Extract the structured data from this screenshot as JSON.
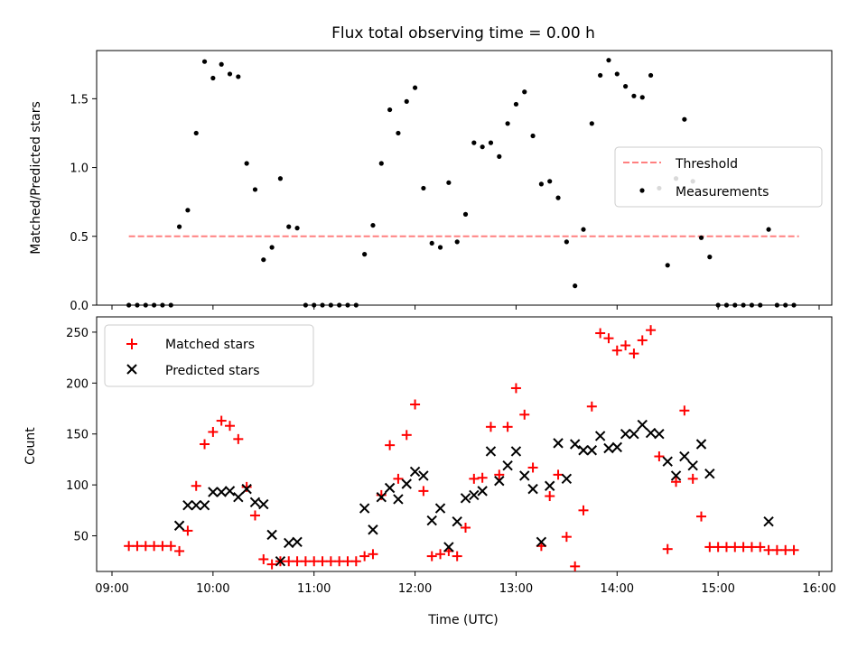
{
  "chart_data": [
    {
      "type": "scatter",
      "title": "Flux total observing time = 0.00 h",
      "ylabel": "Matched/Predicted stars",
      "xlabel": "",
      "xlim": [
        "09:00",
        "16:00"
      ],
      "ylim": [
        0,
        1.85
      ],
      "yticks": [
        0.0,
        0.5,
        1.0,
        1.5
      ],
      "ytick_labels": [
        "0.0",
        "0.5",
        "1.0",
        "1.5"
      ],
      "legend_position": "center-right",
      "threshold": {
        "name": "Threshold",
        "value": 0.5,
        "x_start": "09:10",
        "x_end": "15:48",
        "color": "#ff8080"
      },
      "series": [
        {
          "name": "Measurements",
          "color": "#000000",
          "points": [
            [
              "09:10",
              0
            ],
            [
              "09:15",
              0
            ],
            [
              "09:20",
              0
            ],
            [
              "09:25",
              0
            ],
            [
              "09:30",
              0
            ],
            [
              "09:35",
              0
            ],
            [
              "09:40",
              0.57
            ],
            [
              "09:45",
              0.69
            ],
            [
              "09:50",
              1.25
            ],
            [
              "09:55",
              1.77
            ],
            [
              "10:00",
              1.65
            ],
            [
              "10:05",
              1.75
            ],
            [
              "10:10",
              1.68
            ],
            [
              "10:15",
              1.66
            ],
            [
              "10:20",
              1.03
            ],
            [
              "10:25",
              0.84
            ],
            [
              "10:30",
              0.33
            ],
            [
              "10:35",
              0.42
            ],
            [
              "10:40",
              0.92
            ],
            [
              "10:45",
              0.57
            ],
            [
              "10:50",
              0.56
            ],
            [
              "10:55",
              0
            ],
            [
              "11:00",
              0
            ],
            [
              "11:05",
              0
            ],
            [
              "11:10",
              0
            ],
            [
              "11:15",
              0
            ],
            [
              "11:20",
              0
            ],
            [
              "11:25",
              0
            ],
            [
              "11:30",
              0.37
            ],
            [
              "11:35",
              0.58
            ],
            [
              "11:40",
              1.03
            ],
            [
              "11:45",
              1.42
            ],
            [
              "11:50",
              1.25
            ],
            [
              "11:55",
              1.48
            ],
            [
              "12:00",
              1.58
            ],
            [
              "12:05",
              0.85
            ],
            [
              "12:10",
              0.45
            ],
            [
              "12:15",
              0.42
            ],
            [
              "12:20",
              0.89
            ],
            [
              "12:25",
              0.46
            ],
            [
              "12:30",
              0.66
            ],
            [
              "12:35",
              1.18
            ],
            [
              "12:40",
              1.15
            ],
            [
              "12:45",
              1.18
            ],
            [
              "12:50",
              1.08
            ],
            [
              "12:55",
              1.32
            ],
            [
              "13:00",
              1.46
            ],
            [
              "13:05",
              1.55
            ],
            [
              "13:10",
              1.23
            ],
            [
              "13:15",
              0.88
            ],
            [
              "13:20",
              0.9
            ],
            [
              "13:25",
              0.78
            ],
            [
              "13:30",
              0.46
            ],
            [
              "13:35",
              0.14
            ],
            [
              "13:40",
              0.55
            ],
            [
              "13:45",
              1.32
            ],
            [
              "13:50",
              1.67
            ],
            [
              "13:55",
              1.78
            ],
            [
              "14:00",
              1.68
            ],
            [
              "14:05",
              1.59
            ],
            [
              "14:10",
              1.52
            ],
            [
              "14:15",
              1.51
            ],
            [
              "14:20",
              1.67
            ],
            [
              "14:25",
              0.85
            ],
            [
              "14:30",
              0.29
            ],
            [
              "14:35",
              0.92
            ],
            [
              "14:40",
              1.35
            ],
            [
              "14:45",
              0.9
            ],
            [
              "14:50",
              0.49
            ],
            [
              "14:55",
              0.35
            ],
            [
              "15:00",
              0
            ],
            [
              "15:05",
              0
            ],
            [
              "15:10",
              0
            ],
            [
              "15:15",
              0
            ],
            [
              "15:20",
              0
            ],
            [
              "15:25",
              0
            ],
            [
              "15:30",
              0.55
            ],
            [
              "15:35",
              0
            ],
            [
              "15:40",
              0
            ],
            [
              "15:45",
              0
            ]
          ]
        }
      ]
    },
    {
      "type": "scatter",
      "title": "",
      "xlabel": "Time (UTC)",
      "ylabel": "Count",
      "xlim": [
        "09:00",
        "16:00"
      ],
      "xticks": [
        "09:00",
        "10:00",
        "11:00",
        "12:00",
        "13:00",
        "14:00",
        "15:00",
        "16:00"
      ],
      "ylim": [
        15,
        265
      ],
      "yticks": [
        50,
        100,
        150,
        200,
        250
      ],
      "ytick_labels": [
        "50",
        "100",
        "150",
        "200",
        "250"
      ],
      "legend_position": "upper-left",
      "series": [
        {
          "name": "Matched stars",
          "marker": "plus",
          "color": "#ff0000",
          "points": [
            [
              "09:10",
              40
            ],
            [
              "09:15",
              40
            ],
            [
              "09:20",
              40
            ],
            [
              "09:25",
              40
            ],
            [
              "09:30",
              40
            ],
            [
              "09:35",
              40
            ],
            [
              "09:40",
              35
            ],
            [
              "09:45",
              55
            ],
            [
              "09:50",
              99
            ],
            [
              "09:55",
              140
            ],
            [
              "10:00",
              152
            ],
            [
              "10:05",
              163
            ],
            [
              "10:10",
              158
            ],
            [
              "10:15",
              145
            ],
            [
              "10:20",
              98
            ],
            [
              "10:25",
              70
            ],
            [
              "10:30",
              27
            ],
            [
              "10:35",
              22
            ],
            [
              "10:40",
              25
            ],
            [
              "10:45",
              25
            ],
            [
              "10:50",
              25
            ],
            [
              "10:55",
              25
            ],
            [
              "11:00",
              25
            ],
            [
              "11:05",
              25
            ],
            [
              "11:10",
              25
            ],
            [
              "11:15",
              25
            ],
            [
              "11:20",
              25
            ],
            [
              "11:25",
              25
            ],
            [
              "11:30",
              30
            ],
            [
              "11:35",
              32
            ],
            [
              "11:40",
              90
            ],
            [
              "11:45",
              139
            ],
            [
              "11:50",
              106
            ],
            [
              "11:55",
              149
            ],
            [
              "12:00",
              179
            ],
            [
              "12:05",
              94
            ],
            [
              "12:10",
              30
            ],
            [
              "12:15",
              32
            ],
            [
              "12:20",
              35
            ],
            [
              "12:25",
              30
            ],
            [
              "12:30",
              58
            ],
            [
              "12:35",
              106
            ],
            [
              "12:40",
              107
            ],
            [
              "12:45",
              157
            ],
            [
              "12:50",
              110
            ],
            [
              "12:55",
              157
            ],
            [
              "13:00",
              195
            ],
            [
              "13:05",
              169
            ],
            [
              "13:10",
              117
            ],
            [
              "13:15",
              40
            ],
            [
              "13:20",
              89
            ],
            [
              "13:25",
              110
            ],
            [
              "13:30",
              49
            ],
            [
              "13:35",
              20
            ],
            [
              "13:40",
              75
            ],
            [
              "13:45",
              177
            ],
            [
              "13:50",
              249
            ],
            [
              "13:55",
              244
            ],
            [
              "14:00",
              232
            ],
            [
              "14:05",
              237
            ],
            [
              "14:10",
              229
            ],
            [
              "14:15",
              242
            ],
            [
              "14:20",
              252
            ],
            [
              "14:25",
              128
            ],
            [
              "14:30",
              37
            ],
            [
              "14:35",
              103
            ],
            [
              "14:40",
              173
            ],
            [
              "14:45",
              106
            ],
            [
              "14:50",
              69
            ],
            [
              "14:55",
              39
            ],
            [
              "15:00",
              39
            ],
            [
              "15:05",
              39
            ],
            [
              "15:10",
              39
            ],
            [
              "15:15",
              39
            ],
            [
              "15:20",
              39
            ],
            [
              "15:25",
              39
            ],
            [
              "15:30",
              36
            ],
            [
              "15:35",
              36
            ],
            [
              "15:40",
              36
            ],
            [
              "15:45",
              36
            ]
          ]
        },
        {
          "name": "Predicted stars",
          "marker": "x",
          "color": "#000000",
          "points": [
            [
              "09:40",
              60
            ],
            [
              "09:45",
              80
            ],
            [
              "09:50",
              80
            ],
            [
              "09:55",
              80
            ],
            [
              "10:00",
              93
            ],
            [
              "10:05",
              93
            ],
            [
              "10:10",
              94
            ],
            [
              "10:15",
              88
            ],
            [
              "10:20",
              96
            ],
            [
              "10:25",
              83
            ],
            [
              "10:30",
              81
            ],
            [
              "10:35",
              51
            ],
            [
              "10:40",
              25
            ],
            [
              "10:45",
              43
            ],
            [
              "10:50",
              44
            ],
            [
              "11:30",
              77
            ],
            [
              "11:35",
              56
            ],
            [
              "11:40",
              88
            ],
            [
              "11:45",
              97
            ],
            [
              "11:50",
              86
            ],
            [
              "11:55",
              101
            ],
            [
              "12:00",
              113
            ],
            [
              "12:05",
              109
            ],
            [
              "12:10",
              65
            ],
            [
              "12:15",
              77
            ],
            [
              "12:20",
              39
            ],
            [
              "12:25",
              64
            ],
            [
              "12:30",
              87
            ],
            [
              "12:35",
              90
            ],
            [
              "12:40",
              94
            ],
            [
              "12:45",
              133
            ],
            [
              "12:50",
              104
            ],
            [
              "12:55",
              119
            ],
            [
              "13:00",
              133
            ],
            [
              "13:05",
              109
            ],
            [
              "13:10",
              96
            ],
            [
              "13:15",
              44
            ],
            [
              "13:20",
              99
            ],
            [
              "13:25",
              141
            ],
            [
              "13:30",
              106
            ],
            [
              "13:35",
              140
            ],
            [
              "13:40",
              134
            ],
            [
              "13:45",
              134
            ],
            [
              "13:50",
              148
            ],
            [
              "13:55",
              136
            ],
            [
              "14:00",
              137
            ],
            [
              "14:05",
              150
            ],
            [
              "14:10",
              150
            ],
            [
              "14:15",
              159
            ],
            [
              "14:20",
              151
            ],
            [
              "14:25",
              150
            ],
            [
              "14:30",
              123
            ],
            [
              "14:35",
              109
            ],
            [
              "14:40",
              128
            ],
            [
              "14:45",
              119
            ],
            [
              "14:50",
              140
            ],
            [
              "14:55",
              111
            ],
            [
              "15:30",
              64
            ]
          ]
        }
      ]
    }
  ]
}
